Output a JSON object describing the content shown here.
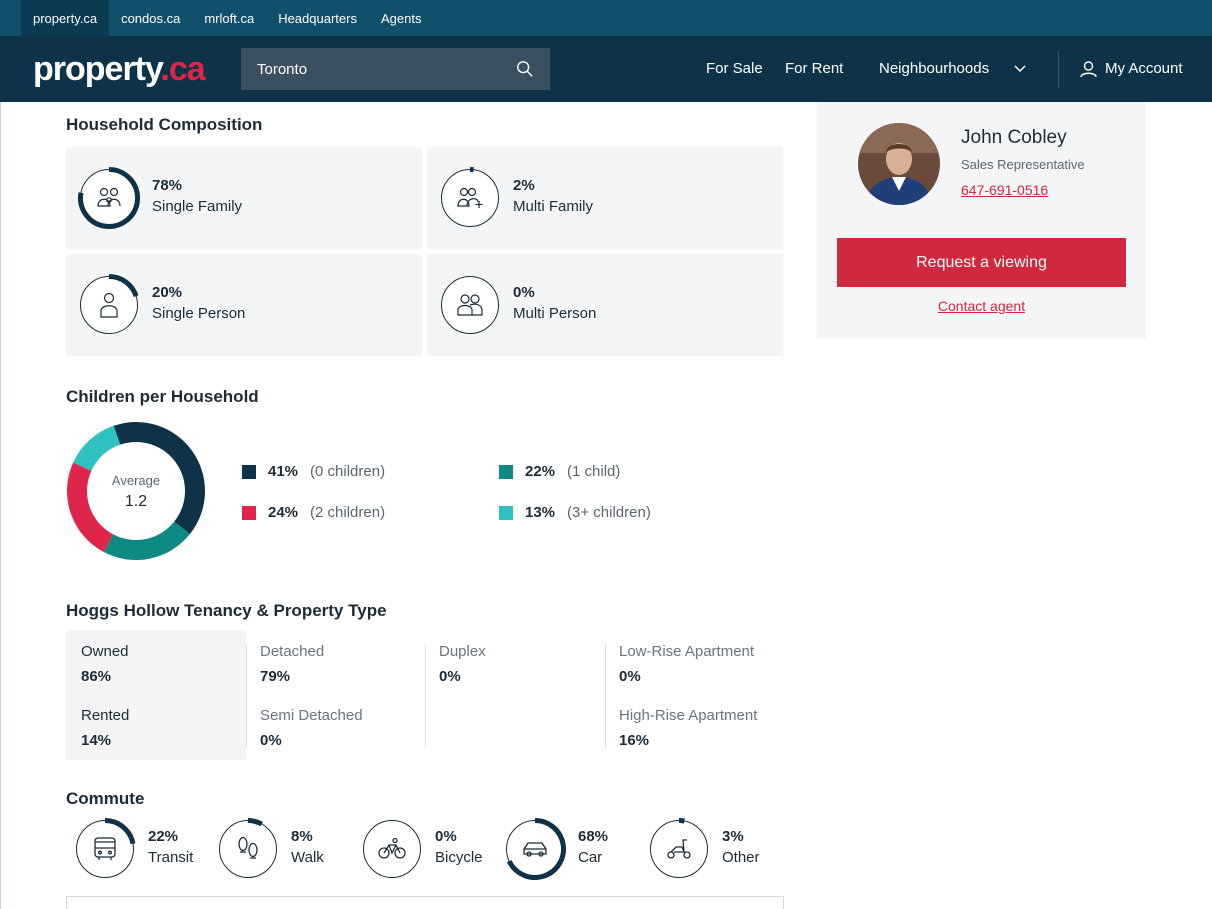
{
  "site_tabs": [
    "property.ca",
    "condos.ca",
    "mrloft.ca",
    "Headquarters",
    "Agents"
  ],
  "header": {
    "logo_main": "property",
    "logo_tld": ".ca",
    "search_value": "Toronto",
    "nav": {
      "for_sale": "For Sale",
      "for_rent": "For Rent",
      "neighbourhoods": "Neighbourhoods",
      "account": "My Account"
    }
  },
  "household": {
    "title": "Household Composition",
    "items": [
      {
        "pct": "78%",
        "label": "Single Family",
        "value": 0.78,
        "icon": "family-icon"
      },
      {
        "pct": "2%",
        "label": "Multi Family",
        "value": 0.02,
        "icon": "multi-family-icon"
      },
      {
        "pct": "20%",
        "label": "Single Person",
        "value": 0.2,
        "icon": "person-icon"
      },
      {
        "pct": "0%",
        "label": "Multi Person",
        "value": 0.0,
        "icon": "multi-person-icon"
      }
    ]
  },
  "children": {
    "title": "Children per Household",
    "avg_label": "Average",
    "avg_value": "1.2",
    "legend": [
      {
        "pct": "41%",
        "desc": "(0 children)",
        "color": "#0e3349"
      },
      {
        "pct": "22%",
        "desc": "(1 child)",
        "color": "#0e8a85"
      },
      {
        "pct": "24%",
        "desc": "(2 children)",
        "color": "#e0254a"
      },
      {
        "pct": "13%",
        "desc": "(3+ children)",
        "color": "#2ec1bf"
      }
    ]
  },
  "chart_data": {
    "type": "pie",
    "title": "Children per Household",
    "categories": [
      "(0 children)",
      "(1 child)",
      "(2 children)",
      "(3+ children)"
    ],
    "values": [
      41,
      22,
      24,
      13
    ],
    "colors": [
      "#0e3349",
      "#0e8a85",
      "#e0254a",
      "#2ec1bf"
    ]
  },
  "tenancy": {
    "title": "Hoggs Hollow Tenancy & Property Type",
    "owned_label": "Owned",
    "owned_value": "86%",
    "rented_label": "Rented",
    "rented_value": "14%",
    "detached_label": "Detached",
    "detached_value": "79%",
    "semi_label": "Semi Detached",
    "semi_value": "0%",
    "duplex_label": "Duplex",
    "duplex_value": "0%",
    "lowrise_label": "Low-Rise Apartment",
    "lowrise_value": "0%",
    "highrise_label": "High-Rise Apartment",
    "highrise_value": "16%"
  },
  "commute": {
    "title": "Commute",
    "items": [
      {
        "pct": "22%",
        "label": "Transit",
        "value": 0.22,
        "icon": "bus-icon"
      },
      {
        "pct": "8%",
        "label": "Walk",
        "value": 0.08,
        "icon": "footprints-icon"
      },
      {
        "pct": "0%",
        "label": "Bicycle",
        "value": 0.0,
        "icon": "bicycle-icon"
      },
      {
        "pct": "68%",
        "label": "Car",
        "value": 0.68,
        "icon": "car-icon"
      },
      {
        "pct": "3%",
        "label": "Other",
        "value": 0.03,
        "icon": "scooter-icon"
      }
    ]
  },
  "agent": {
    "name": "John Cobley",
    "role": "Sales Representative",
    "phone": "647-691-0516",
    "cta": "Request a viewing",
    "contact": "Contact agent"
  },
  "colors": {
    "navy": "#0e3349",
    "accent_red": "#d0283f",
    "ring_track": "#1d2b36"
  }
}
